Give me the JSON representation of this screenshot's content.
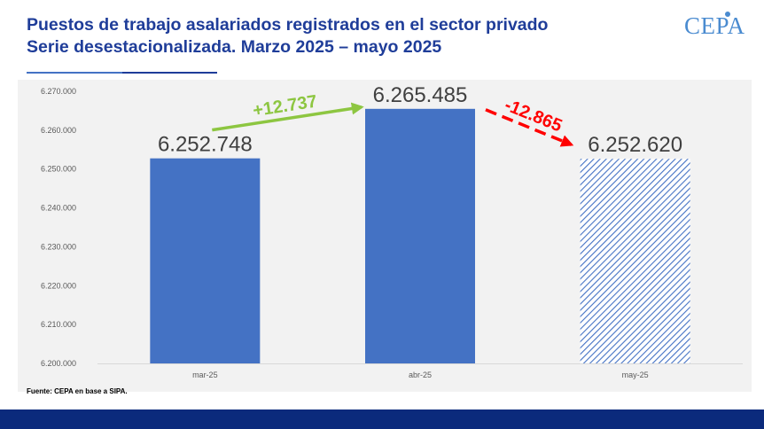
{
  "header": {
    "title_line1": "Puestos de trabajo asalariados registrados en el sector privado",
    "title_line2": "Serie desestacionalizada. Marzo 2025 – mayo 2025",
    "logo_text": "CEPA"
  },
  "source": "Fuente: CEPA en base a SIPA.",
  "colors": {
    "bar": "#4472c4",
    "title": "#1f3d99",
    "increase": "#8dc641",
    "decrease": "#ff0000",
    "footer": "#0b2a7c"
  },
  "chart_data": {
    "type": "bar",
    "title": "Puestos de trabajo asalariados registrados en el sector privado",
    "subtitle": "Serie desestacionalizada. Marzo 2025 – mayo 2025",
    "categories": [
      "mar-25",
      "abr-25",
      "may-25"
    ],
    "values": [
      6252748,
      6265485,
      6252620
    ],
    "value_labels": [
      "6.252.748",
      "6.265.485",
      "6.252.620"
    ],
    "hatched": [
      false,
      false,
      true
    ],
    "ylim": [
      6200000,
      6270000
    ],
    "yticks": [
      6200000,
      6210000,
      6220000,
      6230000,
      6240000,
      6250000,
      6260000,
      6270000
    ],
    "ytick_labels": [
      "6.200.000",
      "6.210.000",
      "6.220.000",
      "6.230.000",
      "6.240.000",
      "6.250.000",
      "6.260.000",
      "6.270.000"
    ],
    "annotations": [
      {
        "text": "+12.737",
        "from": "mar-25",
        "to": "abr-25",
        "color": "#8dc641",
        "style": "solid"
      },
      {
        "text": "-12.865",
        "from": "abr-25",
        "to": "may-25",
        "color": "#ff0000",
        "style": "dashed"
      }
    ],
    "grid": false,
    "xlabel": "",
    "ylabel": ""
  }
}
